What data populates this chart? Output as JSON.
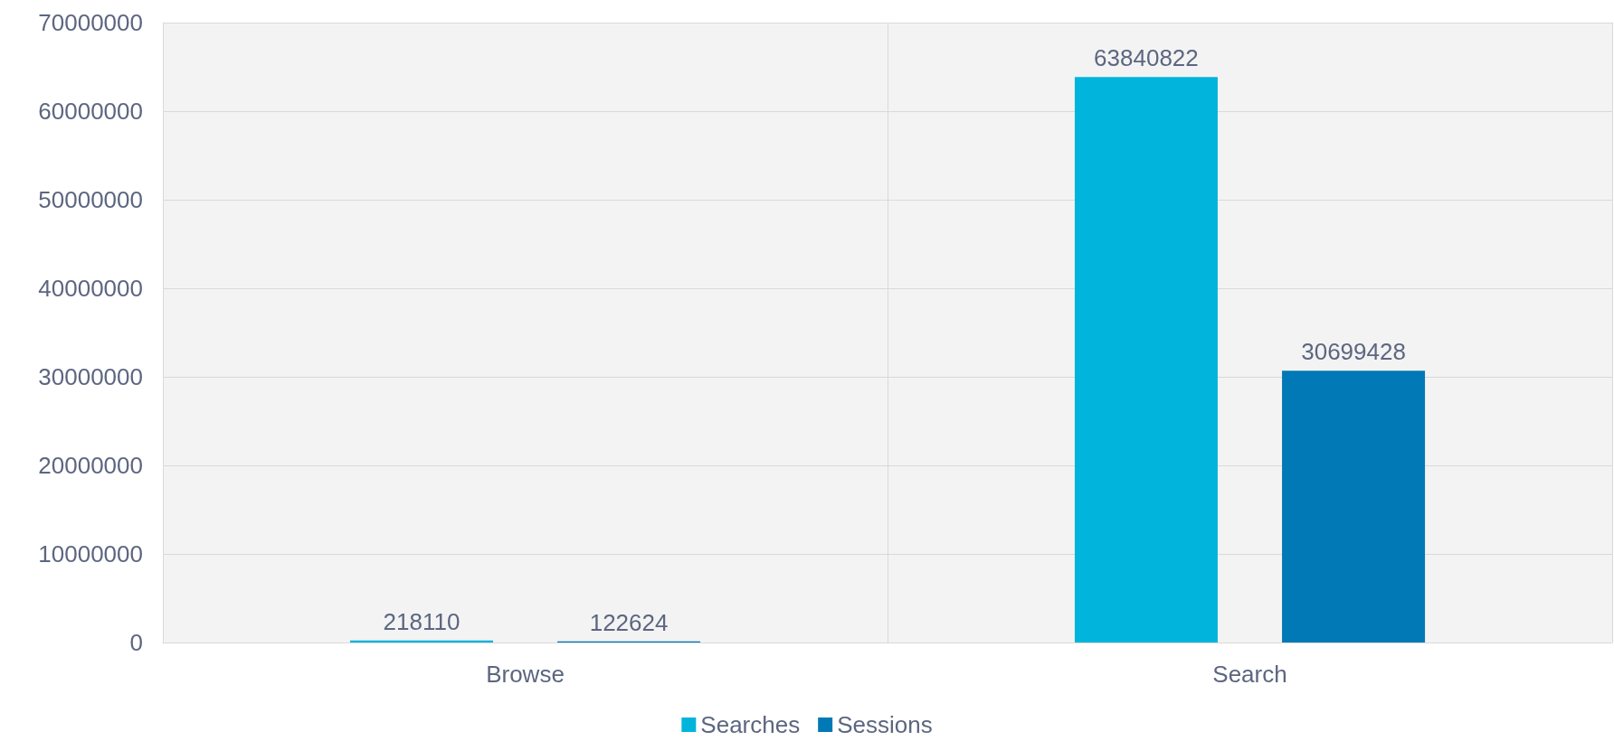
{
  "chart_data": {
    "type": "bar",
    "categories": [
      "Browse",
      "Search"
    ],
    "series": [
      {
        "name": "Searches",
        "color": "#00b4dc",
        "values": [
          218110,
          63840822
        ]
      },
      {
        "name": "Sessions",
        "color": "#0079b6",
        "values": [
          122624,
          30699428
        ]
      }
    ],
    "ylim": [
      0,
      70000000
    ],
    "yticks": [
      0,
      10000000,
      20000000,
      30000000,
      40000000,
      50000000,
      60000000,
      70000000
    ],
    "grid": true,
    "legend": "bottom",
    "data_labels": true
  }
}
